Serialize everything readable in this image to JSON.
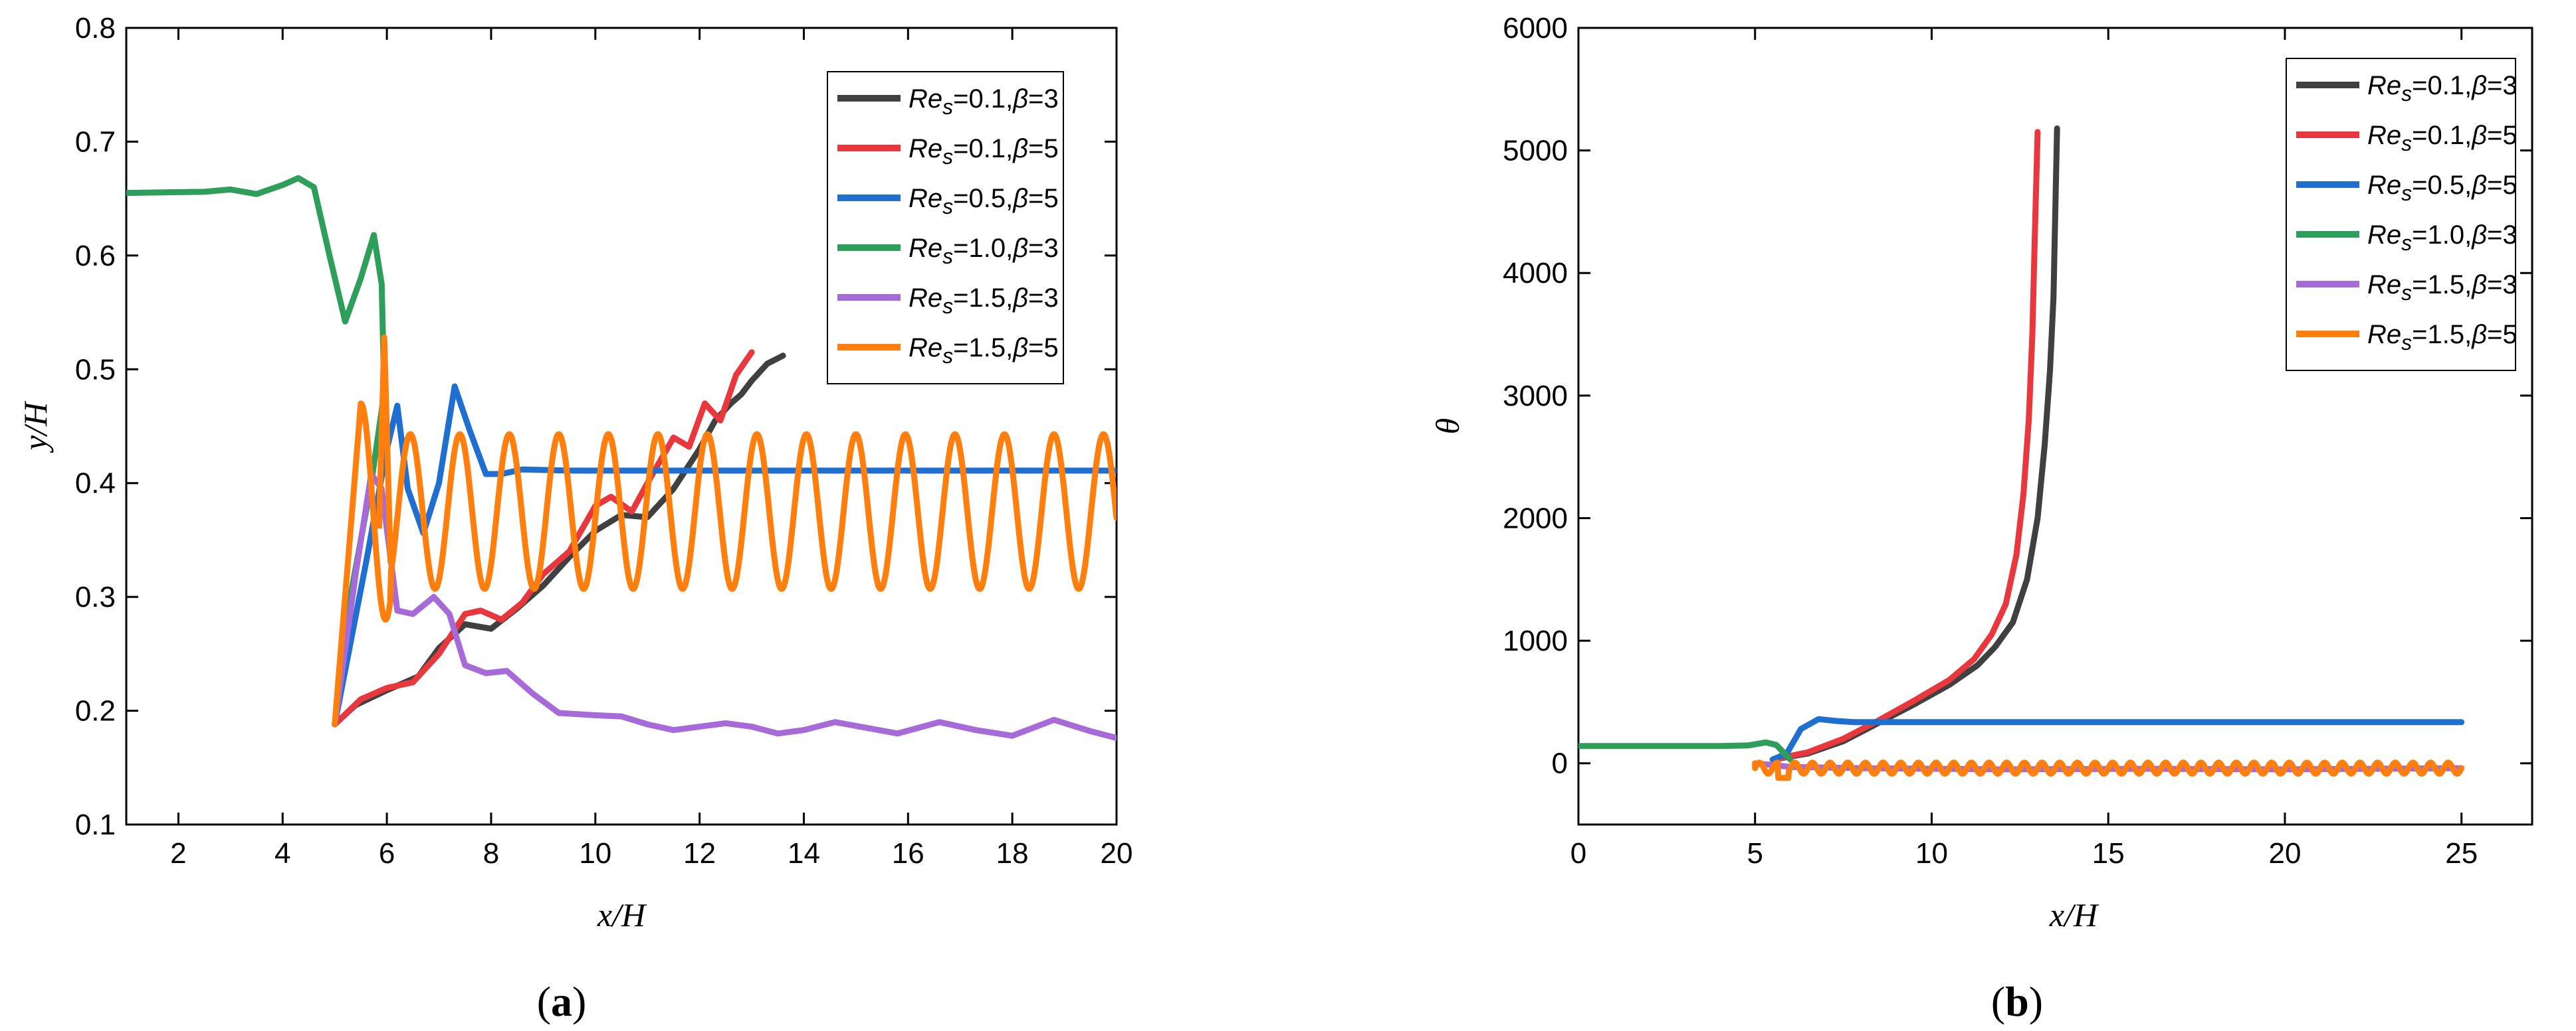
{
  "chart_data": [
    {
      "type": "line",
      "panel_label": "(a)",
      "panel_letter": "a",
      "xlabel": "x/H",
      "ylabel": "y/H",
      "xlim": [
        1,
        20
      ],
      "ylim": [
        0.1,
        0.8
      ],
      "x_ticks": [
        2,
        4,
        6,
        8,
        10,
        12,
        14,
        16,
        18,
        20
      ],
      "x_tick_labels": [
        "2",
        "4",
        "6",
        "8",
        "10",
        "12",
        "14",
        "16",
        "18",
        "20"
      ],
      "y_ticks": [
        0.1,
        0.2,
        0.3,
        0.4,
        0.5,
        0.6,
        0.7,
        0.8
      ],
      "y_tick_labels": [
        "0.1",
        "0.2",
        "0.3",
        "0.4",
        "0.5",
        "0.6",
        "0.7",
        "0.8"
      ],
      "legend_position": "top-right",
      "legend": [
        {
          "re": "0.1",
          "beta": "3",
          "color": "#404040"
        },
        {
          "re": "0.1",
          "beta": "5",
          "color": "#e8383d"
        },
        {
          "re": "0.5",
          "beta": "5",
          "color": "#1f6fd1"
        },
        {
          "re": "1.0",
          "beta": "3",
          "color": "#2e9e5b"
        },
        {
          "re": "1.5",
          "beta": "3",
          "color": "#a66bd8"
        },
        {
          "re": "1.5",
          "beta": "5",
          "color": "#ff7f0e"
        }
      ],
      "series": [
        {
          "name": "Re_s=0.1, β=3",
          "color": "#404040",
          "points": [
            [
              5.0,
              0.188
            ],
            [
              5.4,
              0.205
            ],
            [
              6.0,
              0.218
            ],
            [
              6.6,
              0.23
            ],
            [
              7.0,
              0.255
            ],
            [
              7.5,
              0.276
            ],
            [
              8.0,
              0.272
            ],
            [
              8.5,
              0.29
            ],
            [
              9.0,
              0.31
            ],
            [
              9.5,
              0.335
            ],
            [
              10.0,
              0.358
            ],
            [
              10.5,
              0.372
            ],
            [
              11.0,
              0.37
            ],
            [
              11.5,
              0.395
            ],
            [
              12.0,
              0.43
            ],
            [
              12.3,
              0.455
            ],
            [
              12.6,
              0.47
            ],
            [
              12.8,
              0.478
            ],
            [
              13.0,
              0.49
            ],
            [
              13.3,
              0.505
            ],
            [
              13.6,
              0.512
            ]
          ]
        },
        {
          "name": "Re_s=0.1, β=5",
          "color": "#e8383d",
          "points": [
            [
              5.0,
              0.188
            ],
            [
              5.5,
              0.21
            ],
            [
              6.0,
              0.22
            ],
            [
              6.5,
              0.225
            ],
            [
              7.0,
              0.25
            ],
            [
              7.5,
              0.285
            ],
            [
              7.8,
              0.288
            ],
            [
              8.2,
              0.28
            ],
            [
              8.6,
              0.295
            ],
            [
              9.0,
              0.32
            ],
            [
              9.5,
              0.34
            ],
            [
              10.0,
              0.38
            ],
            [
              10.3,
              0.388
            ],
            [
              10.7,
              0.375
            ],
            [
              11.0,
              0.4
            ],
            [
              11.5,
              0.44
            ],
            [
              11.8,
              0.432
            ],
            [
              12.1,
              0.47
            ],
            [
              12.4,
              0.455
            ],
            [
              12.7,
              0.495
            ],
            [
              13.0,
              0.515
            ]
          ]
        },
        {
          "name": "Re_s=0.5, β=5",
          "color": "#1f6fd1",
          "points": [
            [
              5.0,
              0.188
            ],
            [
              5.6,
              0.33
            ],
            [
              6.0,
              0.43
            ],
            [
              6.2,
              0.468
            ],
            [
              6.4,
              0.395
            ],
            [
              6.7,
              0.356
            ],
            [
              7.0,
              0.4
            ],
            [
              7.3,
              0.485
            ],
            [
              7.6,
              0.445
            ],
            [
              7.9,
              0.408
            ],
            [
              8.2,
              0.408
            ],
            [
              8.6,
              0.412
            ],
            [
              9.5,
              0.411
            ],
            [
              20.0,
              0.411
            ]
          ]
        },
        {
          "name": "Re_s=1.0, β=3",
          "color": "#2e9e5b",
          "points": [
            [
              1.0,
              0.655
            ],
            [
              2.5,
              0.656
            ],
            [
              3.0,
              0.658
            ],
            [
              3.5,
              0.654
            ],
            [
              4.0,
              0.662
            ],
            [
              4.3,
              0.668
            ],
            [
              4.6,
              0.66
            ],
            [
              4.9,
              0.6
            ],
            [
              5.2,
              0.542
            ],
            [
              5.5,
              0.58
            ],
            [
              5.75,
              0.618
            ],
            [
              5.9,
              0.575
            ],
            [
              5.95,
              0.48
            ],
            [
              5.7,
              0.4
            ],
            [
              5.3,
              0.3
            ],
            [
              5.0,
              0.188
            ]
          ]
        },
        {
          "name": "Re_s=1.5, β=3",
          "color": "#a66bd8",
          "points": [
            [
              5.0,
              0.188
            ],
            [
              5.4,
              0.32
            ],
            [
              5.7,
              0.408
            ],
            [
              5.9,
              0.395
            ],
            [
              6.2,
              0.288
            ],
            [
              6.5,
              0.285
            ],
            [
              6.9,
              0.3
            ],
            [
              7.2,
              0.285
            ],
            [
              7.5,
              0.24
            ],
            [
              7.9,
              0.233
            ],
            [
              8.3,
              0.235
            ],
            [
              8.8,
              0.215
            ],
            [
              9.3,
              0.198
            ],
            [
              10.0,
              0.196
            ],
            [
              10.5,
              0.195
            ],
            [
              11.0,
              0.188
            ],
            [
              11.5,
              0.183
            ],
            [
              12.0,
              0.186
            ],
            [
              12.5,
              0.189
            ],
            [
              13.0,
              0.186
            ],
            [
              13.5,
              0.18
            ],
            [
              14.0,
              0.183
            ],
            [
              14.6,
              0.19
            ],
            [
              15.2,
              0.185
            ],
            [
              15.8,
              0.18
            ],
            [
              16.6,
              0.19
            ],
            [
              17.3,
              0.183
            ],
            [
              18.0,
              0.178
            ],
            [
              18.8,
              0.192
            ],
            [
              19.5,
              0.182
            ],
            [
              20.0,
              0.176
            ]
          ]
        },
        {
          "name": "Re_s=1.5, β=5",
          "color": "#ff7f0e",
          "oscillation": {
            "start": 5.0,
            "start_y": 0.188,
            "first_peak_x": 5.5,
            "first_peak_y": 0.47,
            "period": 0.95,
            "center": 0.375,
            "amplitude": 0.068,
            "end": 20.0,
            "spike_x": 5.95,
            "spike_y": 0.528
          }
        }
      ]
    },
    {
      "type": "line",
      "panel_label": "(b)",
      "panel_letter": "b",
      "xlabel": "x/H",
      "ylabel": "θ",
      "xlim": [
        0,
        27
      ],
      "ylim": [
        -500,
        6000
      ],
      "x_ticks": [
        0,
        5,
        10,
        15,
        20,
        25
      ],
      "x_tick_labels": [
        "0",
        "5",
        "10",
        "15",
        "20",
        "25"
      ],
      "y_ticks": [
        0,
        1000,
        2000,
        3000,
        4000,
        5000,
        6000
      ],
      "y_tick_labels": [
        "0",
        "1000",
        "2000",
        "3000",
        "4000",
        "5000",
        "6000"
      ],
      "legend_position": "top-right",
      "legend": [
        {
          "re": "0.1",
          "beta": "3",
          "color": "#404040"
        },
        {
          "re": "0.1",
          "beta": "5",
          "color": "#e8383d"
        },
        {
          "re": "0.5",
          "beta": "5",
          "color": "#1f6fd1"
        },
        {
          "re": "1.0",
          "beta": "3",
          "color": "#2e9e5b"
        },
        {
          "re": "1.5",
          "beta": "3",
          "color": "#a66bd8"
        },
        {
          "re": "1.5",
          "beta": "5",
          "color": "#ff7f0e"
        }
      ],
      "series": [
        {
          "name": "Re_s=0.1, β=3",
          "color": "#404040",
          "points": [
            [
              5.5,
              30
            ],
            [
              6.5,
              80
            ],
            [
              7.5,
              180
            ],
            [
              8.5,
              330
            ],
            [
              9.5,
              480
            ],
            [
              10.5,
              640
            ],
            [
              11.3,
              800
            ],
            [
              11.8,
              950
            ],
            [
              12.3,
              1150
            ],
            [
              12.7,
              1500
            ],
            [
              13.0,
              2000
            ],
            [
              13.2,
              2600
            ],
            [
              13.35,
              3200
            ],
            [
              13.45,
              3800
            ],
            [
              13.5,
              4500
            ],
            [
              13.55,
              5180
            ]
          ]
        },
        {
          "name": "Re_s=0.1, β=5",
          "color": "#e8383d",
          "points": [
            [
              5.5,
              30
            ],
            [
              6.5,
              90
            ],
            [
              7.5,
              200
            ],
            [
              8.5,
              350
            ],
            [
              9.5,
              510
            ],
            [
              10.5,
              680
            ],
            [
              11.2,
              850
            ],
            [
              11.7,
              1050
            ],
            [
              12.1,
              1300
            ],
            [
              12.4,
              1700
            ],
            [
              12.6,
              2200
            ],
            [
              12.75,
              2800
            ],
            [
              12.85,
              3500
            ],
            [
              12.92,
              4300
            ],
            [
              13.0,
              5150
            ]
          ]
        },
        {
          "name": "Re_s=0.5, β=5",
          "color": "#1f6fd1",
          "points": [
            [
              5.5,
              30
            ],
            [
              5.9,
              80
            ],
            [
              6.3,
              280
            ],
            [
              6.8,
              360
            ],
            [
              7.3,
              345
            ],
            [
              7.8,
              335
            ],
            [
              9.0,
              335
            ],
            [
              25.0,
              335
            ]
          ]
        },
        {
          "name": "Re_s=1.0, β=3",
          "color": "#2e9e5b",
          "points": [
            [
              0.0,
              140
            ],
            [
              4.0,
              140
            ],
            [
              4.8,
              145
            ],
            [
              5.3,
              170
            ],
            [
              5.6,
              150
            ],
            [
              5.9,
              60
            ],
            [
              6.0,
              30
            ]
          ]
        },
        {
          "name": "Re_s=1.5, β=3",
          "color": "#a66bd8",
          "points": [
            [
              5.0,
              0
            ],
            [
              6.0,
              -30
            ],
            [
              8.0,
              -40
            ],
            [
              12.0,
              -50
            ],
            [
              16.0,
              -45
            ],
            [
              20.0,
              -50
            ],
            [
              25.0,
              -40
            ]
          ]
        },
        {
          "name": "Re_s=1.5, β=5",
          "color": "#ff7f0e",
          "oscillation": {
            "start": 5.0,
            "start_y": 0,
            "period": 0.5,
            "center": -40,
            "amplitude": 45,
            "end": 25.0,
            "dip_x": 5.8,
            "dip_y": -120
          }
        }
      ]
    }
  ]
}
